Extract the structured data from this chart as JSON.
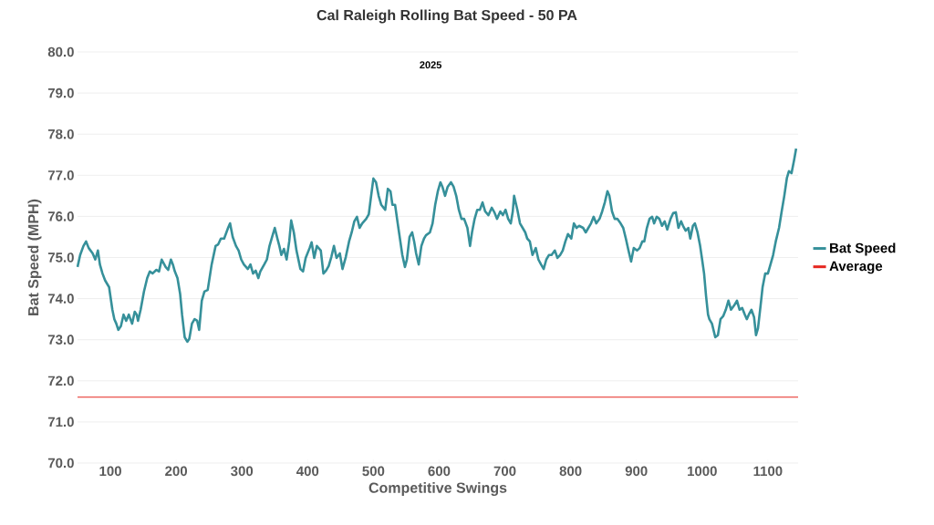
{
  "chart_data": {
    "type": "line",
    "title": "Cal Raleigh Rolling Bat Speed - 50 PA",
    "xlabel": "Competitive Swings",
    "ylabel": "Bat Speed (MPH)",
    "annotations": [
      "2025"
    ],
    "xlim": [
      50,
      1146
    ],
    "ylim": [
      70,
      80
    ],
    "xticks": [
      100,
      200,
      300,
      400,
      500,
      600,
      700,
      800,
      900,
      1000,
      1100
    ],
    "yticks": [
      {
        "value": 70,
        "label": "70.0"
      },
      {
        "value": 71,
        "label": "71.0"
      },
      {
        "value": 72,
        "label": "72.0"
      },
      {
        "value": 73,
        "label": "73.0"
      },
      {
        "value": 74,
        "label": "74.0"
      },
      {
        "value": 75,
        "label": "75.0"
      },
      {
        "value": 76,
        "label": "76.0"
      },
      {
        "value": 77,
        "label": "77.0"
      },
      {
        "value": 78,
        "label": "78.0"
      },
      {
        "value": 79,
        "label": "79.0"
      },
      {
        "value": 80,
        "label": "80.0"
      }
    ],
    "grid": "y",
    "legend": "right",
    "marker": "none",
    "line_style": "solid",
    "ref_lines": [
      {
        "axis": "y",
        "value": 71.6,
        "label": "Average",
        "color": "#e5261f"
      }
    ],
    "series": [
      {
        "name": "Bat Speed",
        "color": "#36909a",
        "x": [
          50,
          54,
          59,
          63,
          67,
          73,
          77,
          81,
          84,
          88,
          92,
          98,
          103,
          106,
          109,
          112,
          116,
          120,
          124,
          128,
          133,
          137,
          140,
          142,
          146,
          151,
          156,
          160,
          164,
          170,
          174,
          178,
          184,
          188,
          192,
          195,
          198,
          202,
          206,
          209,
          213,
          217,
          220,
          224,
          228,
          232,
          235,
          239,
          243,
          248,
          254,
          260,
          264,
          268,
          273,
          279,
          282,
          286,
          291,
          295,
          299,
          303,
          309,
          313,
          317,
          321,
          325,
          328,
          334,
          338,
          342,
          346,
          350,
          354,
          357,
          360,
          364,
          368,
          372,
          375,
          379,
          383,
          389,
          393,
          397,
          403,
          406,
          410,
          414,
          420,
          424,
          428,
          432,
          436,
          440,
          444,
          449,
          453,
          458,
          463,
          467,
          471,
          475,
          479,
          483,
          489,
          493,
          496,
          500,
          504,
          508,
          512,
          518,
          522,
          526,
          529,
          533,
          537,
          541,
          544,
          548,
          551,
          555,
          559,
          562,
          565,
          569,
          573,
          577,
          580,
          586,
          590,
          594,
          598,
          602,
          605,
          609,
          613,
          618,
          622,
          626,
          630,
          634,
          638,
          643,
          647,
          650,
          654,
          658,
          662,
          666,
          670,
          675,
          680,
          684,
          688,
          693,
          697,
          701,
          705,
          709,
          712,
          714,
          719,
          723,
          727,
          731,
          734,
          738,
          742,
          747,
          751,
          755,
          759,
          763,
          767,
          771,
          776,
          780,
          784,
          788,
          792,
          796,
          801,
          805,
          809,
          813,
          819,
          823,
          827,
          831,
          835,
          839,
          844,
          848,
          852,
          856,
          859,
          863,
          867,
          871,
          876,
          880,
          884,
          888,
          892,
          896,
          901,
          905,
          909,
          912,
          916,
          920,
          924,
          927,
          931,
          935,
          939,
          943,
          947,
          952,
          956,
          960,
          964,
          968,
          971,
          975,
          979,
          982,
          986,
          989,
          993,
          997,
          1000,
          1003,
          1006,
          1009,
          1011,
          1015,
          1020,
          1024,
          1028,
          1032,
          1036,
          1040,
          1044,
          1049,
          1053,
          1057,
          1061,
          1065,
          1068,
          1071,
          1075,
          1079,
          1082,
          1085,
          1089,
          1092,
          1096,
          1100,
          1104,
          1108,
          1112,
          1117,
          1121,
          1125,
          1129,
          1132,
          1136,
          1140,
          1143
        ],
        "values": [
          74.77,
          75.06,
          75.28,
          75.39,
          75.23,
          75.1,
          74.95,
          75.17,
          74.83,
          74.61,
          74.44,
          74.28,
          73.73,
          73.5,
          73.39,
          73.24,
          73.33,
          73.61,
          73.46,
          73.61,
          73.39,
          73.68,
          73.61,
          73.46,
          73.73,
          74.17,
          74.5,
          74.66,
          74.61,
          74.7,
          74.66,
          74.95,
          74.77,
          74.7,
          74.95,
          74.83,
          74.66,
          74.5,
          74.12,
          73.61,
          73.06,
          72.95,
          73.02,
          73.39,
          73.5,
          73.46,
          73.24,
          73.95,
          74.17,
          74.21,
          74.83,
          75.28,
          75.32,
          75.46,
          75.46,
          75.72,
          75.83,
          75.5,
          75.28,
          75.17,
          74.95,
          74.83,
          74.72,
          74.83,
          74.61,
          74.68,
          74.5,
          74.66,
          74.83,
          74.95,
          75.28,
          75.5,
          75.72,
          75.46,
          75.28,
          75.06,
          75.21,
          74.95,
          75.39,
          75.9,
          75.61,
          75.17,
          74.72,
          74.66,
          74.99,
          75.23,
          75.37,
          74.99,
          75.28,
          75.17,
          74.61,
          74.68,
          74.79,
          75.01,
          75.28,
          74.99,
          75.1,
          74.72,
          75.01,
          75.39,
          75.61,
          75.88,
          75.99,
          75.72,
          75.83,
          75.94,
          76.05,
          76.43,
          76.92,
          76.83,
          76.5,
          76.28,
          76.16,
          76.67,
          76.61,
          76.28,
          76.28,
          75.83,
          75.39,
          75.06,
          74.77,
          74.95,
          75.5,
          75.61,
          75.39,
          75.1,
          74.83,
          75.28,
          75.46,
          75.54,
          75.61,
          75.83,
          76.28,
          76.61,
          76.83,
          76.72,
          76.5,
          76.72,
          76.83,
          76.72,
          76.5,
          76.16,
          75.94,
          75.94,
          75.72,
          75.28,
          75.61,
          75.94,
          76.16,
          76.16,
          76.34,
          76.12,
          76.03,
          76.21,
          76.1,
          75.94,
          76.12,
          76.03,
          76.16,
          75.94,
          75.83,
          76.12,
          76.5,
          76.16,
          75.83,
          75.72,
          75.61,
          75.46,
          75.39,
          75.06,
          75.23,
          74.95,
          74.83,
          74.72,
          74.95,
          75.06,
          75.06,
          75.17,
          74.99,
          75.06,
          75.17,
          75.39,
          75.57,
          75.46,
          75.83,
          75.72,
          75.77,
          75.72,
          75.61,
          75.72,
          75.83,
          75.99,
          75.83,
          75.94,
          76.12,
          76.34,
          76.61,
          76.5,
          76.12,
          75.94,
          75.94,
          75.83,
          75.72,
          75.46,
          75.17,
          74.9,
          75.23,
          75.17,
          75.23,
          75.39,
          75.39,
          75.72,
          75.94,
          75.99,
          75.83,
          75.99,
          75.94,
          75.77,
          75.88,
          75.68,
          75.94,
          76.08,
          76.1,
          75.72,
          75.88,
          75.77,
          75.65,
          75.72,
          75.46,
          75.77,
          75.83,
          75.61,
          75.28,
          74.95,
          74.61,
          74.06,
          73.61,
          73.5,
          73.39,
          73.06,
          73.11,
          73.5,
          73.57,
          73.73,
          73.95,
          73.73,
          73.84,
          73.95,
          73.73,
          73.77,
          73.61,
          73.5,
          73.61,
          73.73,
          73.55,
          73.11,
          73.28,
          73.84,
          74.28,
          74.61,
          74.61,
          74.83,
          75.06,
          75.39,
          75.72,
          76.12,
          76.5,
          76.94,
          77.1,
          77.05,
          77.38,
          77.65
        ]
      }
    ]
  }
}
